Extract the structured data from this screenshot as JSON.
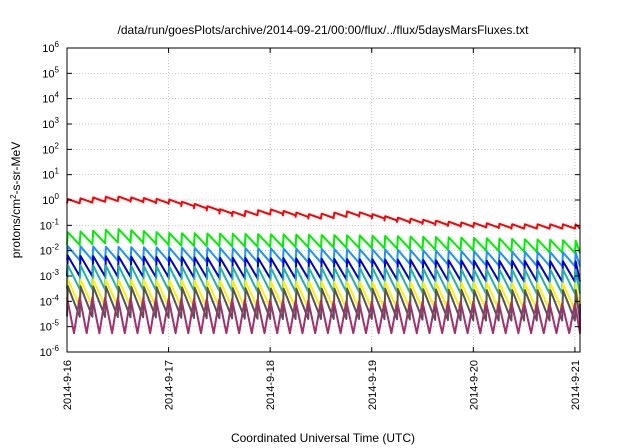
{
  "chart_data": {
    "type": "line",
    "title": "/data/run/goesPlots/archive/2014-09-21/00:00/flux/../flux/5daysMarsFluxes.txt",
    "xlabel": "Coordinated Universal Time (UTC)",
    "ylabel_prefix": "protons/cm",
    "ylabel_sup": "2",
    "ylabel_suffix": "-s-sr-MeV",
    "yscale": "log",
    "ylim": [
      1e-06,
      1000000.0
    ],
    "xlim": [
      0,
      5.05
    ],
    "grid": true,
    "xticks": [
      {
        "x": 0,
        "label": "2014-9-16"
      },
      {
        "x": 1,
        "label": "2014-9-17"
      },
      {
        "x": 2,
        "label": "2014-9-18"
      },
      {
        "x": 3,
        "label": "2014-9-19"
      },
      {
        "x": 4,
        "label": "2014-9-20"
      },
      {
        "x": 5,
        "label": "2014-9-21"
      }
    ],
    "yticks": [
      {
        "exp": -6,
        "base": "10",
        "sup": "-6"
      },
      {
        "exp": -5,
        "base": "10",
        "sup": "-5"
      },
      {
        "exp": -4,
        "base": "10",
        "sup": "-4"
      },
      {
        "exp": -3,
        "base": "10",
        "sup": "-3"
      },
      {
        "exp": -2,
        "base": "10",
        "sup": "-2"
      },
      {
        "exp": -1,
        "base": "10",
        "sup": "-1"
      },
      {
        "exp": 0,
        "base": "10",
        "sup": "0"
      },
      {
        "exp": 1,
        "base": "10",
        "sup": "1"
      },
      {
        "exp": 2,
        "base": "10",
        "sup": "2"
      },
      {
        "exp": 3,
        "base": "10",
        "sup": "3"
      },
      {
        "exp": 4,
        "base": "10",
        "sup": "4"
      },
      {
        "exp": 5,
        "base": "10",
        "sup": "5"
      },
      {
        "exp": 6,
        "base": "10",
        "sup": "6"
      }
    ],
    "series": [
      {
        "color": "#ff0000",
        "shape": "sawtooth",
        "cycle": 0.125,
        "decay": 0.17,
        "baseline": [
          [
            0,
            0.9
          ],
          [
            0.45,
            1.15
          ],
          [
            1.0,
            0.85
          ],
          [
            1.4,
            0.45
          ],
          [
            1.6,
            0.28
          ],
          [
            2.0,
            0.35
          ],
          [
            2.4,
            0.22
          ],
          [
            2.8,
            0.3
          ],
          [
            3.2,
            0.17
          ],
          [
            3.8,
            0.11
          ],
          [
            4.4,
            0.09
          ],
          [
            5.05,
            0.09
          ]
        ]
      },
      {
        "color": "#00ee00",
        "shape": "sawtooth",
        "cycle": 0.125,
        "decay": 0.5,
        "baseline": [
          [
            0,
            0.03
          ],
          [
            0.5,
            0.04
          ],
          [
            1.0,
            0.028
          ],
          [
            2.0,
            0.025
          ],
          [
            3.0,
            0.022
          ],
          [
            4.0,
            0.018
          ],
          [
            5.05,
            0.014
          ]
        ]
      },
      {
        "color": "#1e90ff",
        "shape": "sawtooth",
        "cycle": 0.125,
        "decay": 0.55,
        "baseline": [
          [
            0,
            0.008
          ],
          [
            1.0,
            0.007
          ],
          [
            2.0,
            0.0065
          ],
          [
            3.0,
            0.006
          ],
          [
            4.0,
            0.005
          ],
          [
            5.05,
            0.0045
          ]
        ]
      },
      {
        "color": "#0000cc",
        "shape": "sawtooth",
        "cycle": 0.125,
        "decay": 0.8,
        "baseline": [
          [
            0,
            0.0025
          ],
          [
            1.0,
            0.0022
          ],
          [
            2.0,
            0.002
          ],
          [
            3.0,
            0.0018
          ],
          [
            4.0,
            0.0016
          ],
          [
            5.05,
            0.0015
          ]
        ]
      },
      {
        "color": "#20b2aa",
        "shape": "sawtooth",
        "cycle": 0.125,
        "decay": 0.95,
        "baseline": [
          [
            0,
            0.0009
          ],
          [
            1.0,
            0.0008
          ],
          [
            2.0,
            0.0007
          ],
          [
            3.0,
            0.0007
          ],
          [
            4.0,
            0.0006
          ],
          [
            5.05,
            0.0006
          ]
        ]
      },
      {
        "color": "#ffee00",
        "shape": "sawtooth",
        "cycle": 0.125,
        "decay": 1.05,
        "baseline": [
          [
            0,
            0.00022
          ],
          [
            1.0,
            0.0002
          ],
          [
            2.0,
            0.00018
          ],
          [
            3.0,
            0.00017
          ],
          [
            4.0,
            0.00016
          ],
          [
            5.05,
            0.00015
          ]
        ]
      },
      {
        "color": "#555555",
        "shape": "sawtooth",
        "cycle": 0.125,
        "decay": 1.2,
        "baseline": [
          [
            0,
            0.0001
          ],
          [
            1.0,
            9e-05
          ],
          [
            2.0,
            8e-05
          ],
          [
            3.0,
            8e-05
          ],
          [
            4.0,
            7e-05
          ],
          [
            5.05,
            7e-05
          ]
        ]
      },
      {
        "color": "#a0306e",
        "shape": "spike",
        "cycle": 0.125,
        "min": 5.5e-06,
        "baseline": [
          [
            0,
            9e-05
          ],
          [
            1.0,
            8e-05
          ],
          [
            2.0,
            7e-05
          ],
          [
            3.0,
            6e-05
          ],
          [
            4.0,
            6e-05
          ],
          [
            5.05,
            5e-05
          ]
        ]
      }
    ]
  }
}
